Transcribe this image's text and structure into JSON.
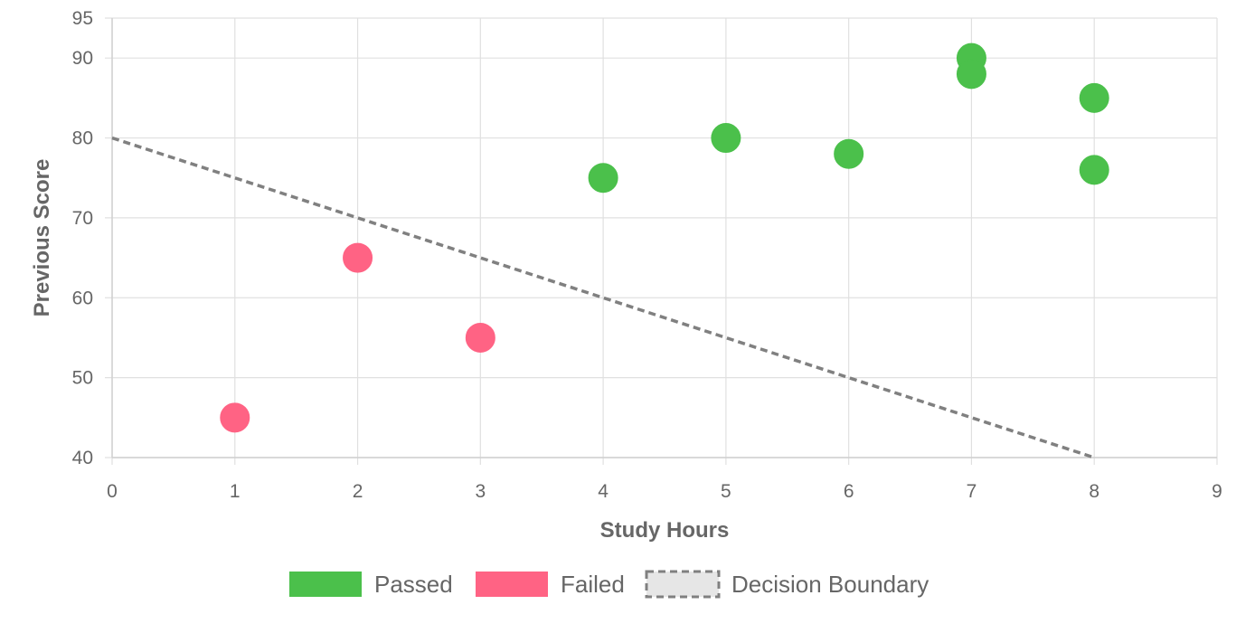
{
  "chart_data": {
    "type": "scatter",
    "xlabel": "Study Hours",
    "ylabel": "Previous Score",
    "xlim": [
      0,
      9
    ],
    "ylim": [
      40,
      95
    ],
    "xticks": [
      "0",
      "1",
      "2",
      "3",
      "4",
      "5",
      "6",
      "7",
      "8",
      "9"
    ],
    "yticks": [
      {
        "value": 40,
        "label": "40"
      },
      {
        "value": 50,
        "label": "50"
      },
      {
        "value": 60,
        "label": "60"
      },
      {
        "value": 70,
        "label": "70"
      },
      {
        "value": 80,
        "label": "80"
      },
      {
        "value": 90,
        "label": "90"
      },
      {
        "value": 95,
        "label": "95"
      }
    ],
    "grid": true,
    "legend_position": "bottom",
    "series": [
      {
        "name": "Passed",
        "color": "#4bc04b",
        "points": [
          [
            4,
            75
          ],
          [
            5,
            80
          ],
          [
            6,
            78
          ],
          [
            7,
            90
          ],
          [
            7,
            88
          ],
          [
            8,
            85
          ],
          [
            8,
            76
          ]
        ]
      },
      {
        "name": "Failed",
        "color": "#ff6384",
        "points": [
          [
            1,
            45
          ],
          [
            2,
            65
          ],
          [
            3,
            55
          ]
        ]
      },
      {
        "name": "Decision Boundary",
        "color": "#808080",
        "style": "dashed-line",
        "points": [
          [
            0,
            80
          ],
          [
            8,
            40
          ]
        ]
      }
    ]
  }
}
